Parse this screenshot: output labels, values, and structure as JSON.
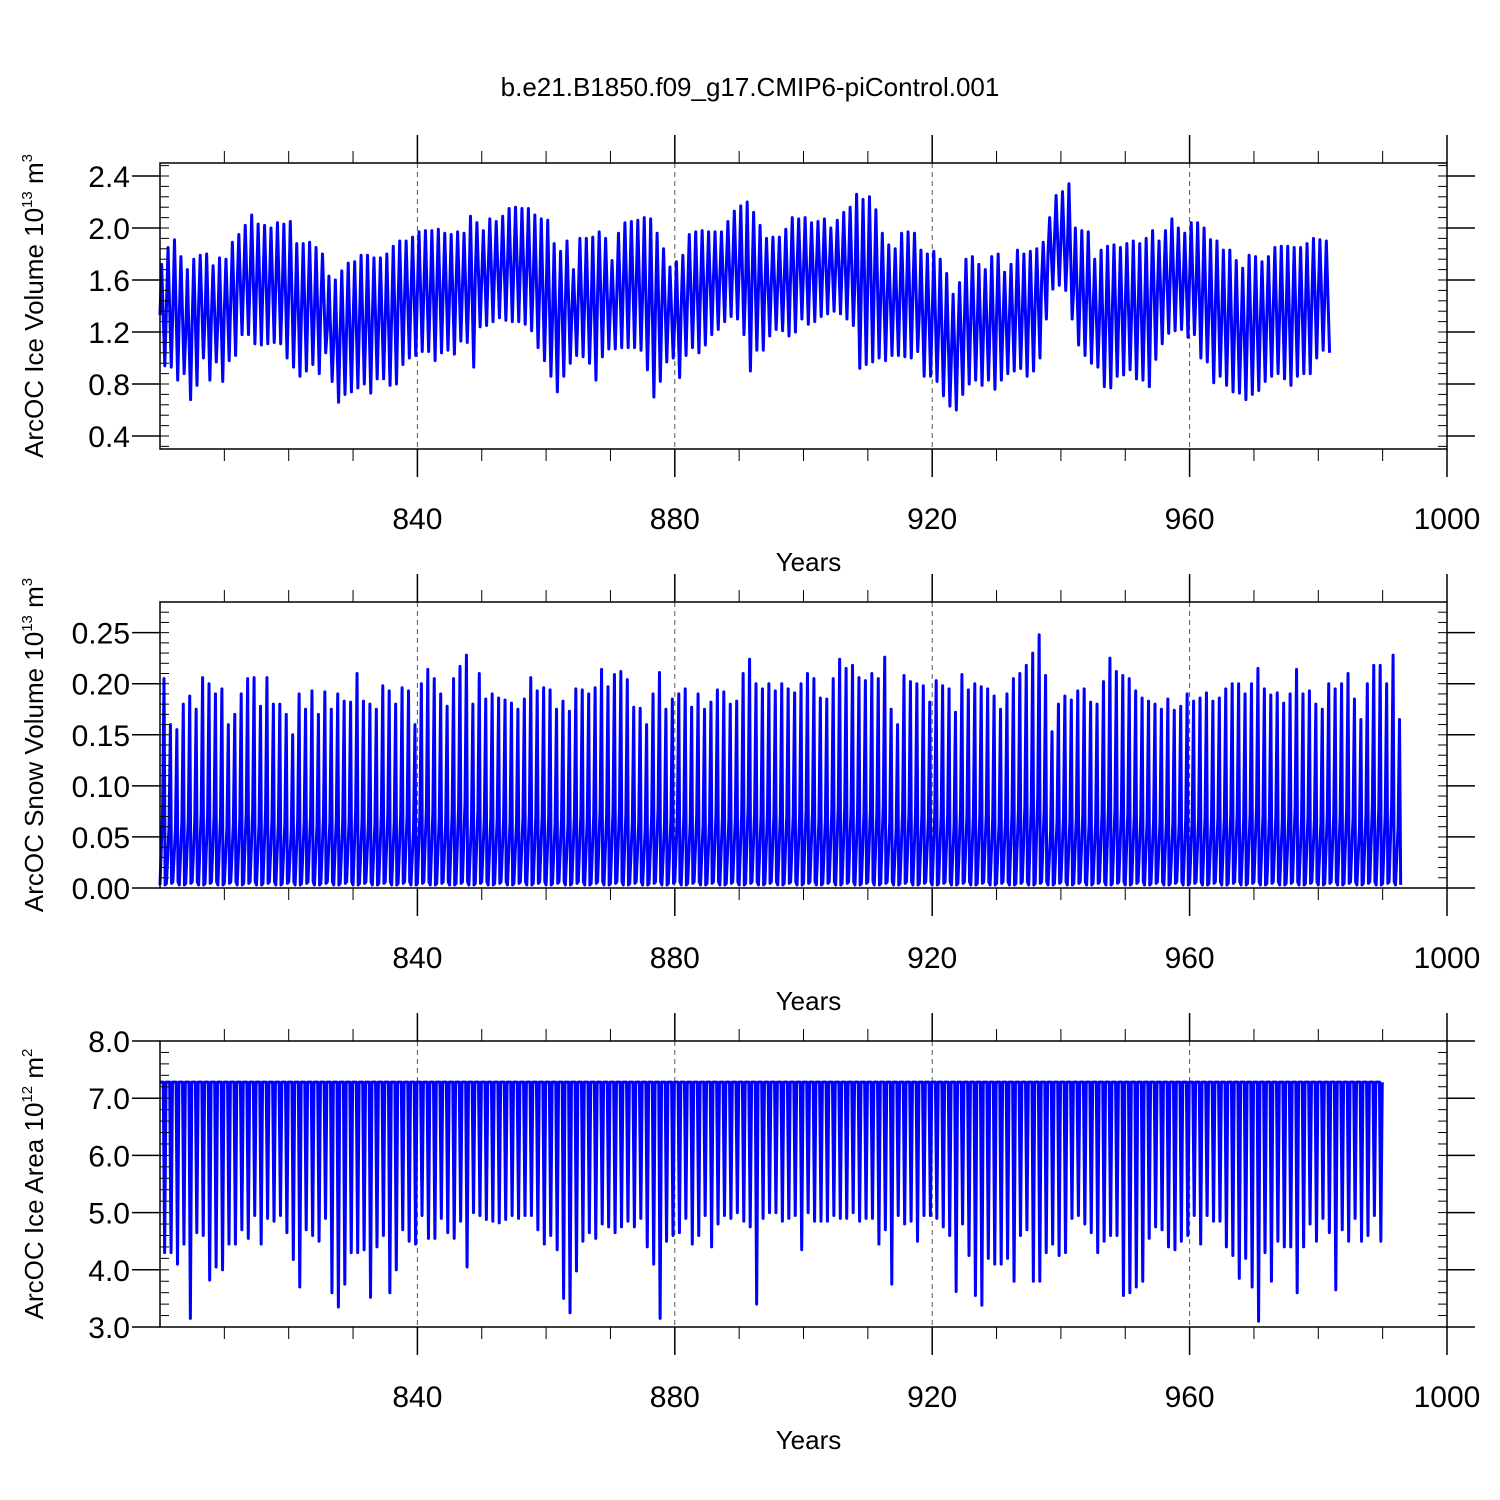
{
  "title": "b.e21.B1850.f09_g17.CMIP6-piControl.001",
  "chart_data": [
    {
      "type": "line",
      "ylabel": {
        "main": "ArcOC Ice Volume 10",
        "exp": "13",
        "unit": " m",
        "unit_exp": "3"
      },
      "xlabel": "Years",
      "xlim": [
        800,
        1000
      ],
      "ylim": [
        0.3,
        2.5
      ],
      "yticks": [
        "0.4",
        "0.8",
        "1.2",
        "1.6",
        "2.0",
        "2.4"
      ],
      "xticks": [
        "840",
        "880",
        "920",
        "960",
        "1000"
      ],
      "line_color": "#0000ff",
      "x_start": 800.0,
      "step_per_year": 1,
      "series": [
        {
          "values_per_year_max": [
            1.72,
            1.85,
            1.91,
            1.78,
            1.68,
            1.76,
            1.79,
            1.8,
            1.71,
            1.77,
            1.76,
            1.89,
            1.95,
            2.02,
            2.1,
            2.03,
            2.02,
            2.0,
            2.04,
            2.03,
            2.05,
            1.88,
            1.88,
            1.89,
            1.85,
            1.8,
            1.63,
            1.6,
            1.67,
            1.73,
            1.74,
            1.79,
            1.79,
            1.77,
            1.77,
            1.8,
            1.86,
            1.9,
            1.9,
            1.93,
            1.97,
            1.98,
            1.98,
            1.99,
            1.96,
            1.95,
            1.97,
            1.96,
            2.09,
            2.04,
            1.98,
            2.07,
            2.05,
            2.09,
            2.15,
            2.16,
            2.15,
            2.15,
            2.1,
            2.07,
            2.06,
            1.88,
            1.82,
            1.9,
            1.68,
            1.92,
            1.92,
            1.93,
            1.97,
            1.92,
            1.75,
            1.96,
            2.04,
            2.05,
            2.06,
            2.08,
            2.07,
            1.96,
            1.84,
            1.7,
            1.74,
            1.79,
            1.95,
            1.97,
            1.98,
            1.97,
            1.97,
            1.97,
            2.05,
            2.13,
            2.17,
            2.2,
            2.12,
            2.02,
            1.92,
            1.93,
            1.93,
            1.99,
            2.08,
            2.07,
            2.08,
            2.04,
            2.05,
            2.07,
            2.0,
            2.06,
            2.12,
            2.16,
            2.26,
            2.22,
            2.24,
            2.14,
            1.96,
            1.87,
            1.84,
            1.96,
            1.97,
            1.96,
            1.83,
            1.8,
            1.82,
            1.76,
            1.65,
            1.49,
            1.58,
            1.76,
            1.78,
            1.72,
            1.68,
            1.78,
            1.8,
            1.66,
            1.72,
            1.83,
            1.8,
            1.82,
            1.84,
            1.89,
            2.08,
            2.25,
            2.28,
            2.34,
            2.0,
            1.98,
            1.97,
            1.76,
            1.83,
            1.86,
            1.87,
            1.85,
            1.88,
            1.9,
            1.88,
            1.92,
            1.98,
            1.9,
            1.98,
            2.07,
            2.0,
            1.96,
            2.04,
            2.04,
            2.0,
            1.91,
            1.9,
            1.83,
            1.83,
            1.75,
            1.69,
            1.79,
            1.78,
            1.74,
            1.78,
            1.85,
            1.86,
            1.86,
            1.85,
            1.85,
            1.88,
            1.92,
            1.91,
            1.9
          ],
          "values_per_year_min": [
            0.94,
            0.93,
            0.83,
            0.88,
            0.68,
            0.79,
            1.0,
            0.83,
            0.97,
            0.82,
            0.98,
            1.02,
            1.18,
            1.18,
            1.11,
            1.1,
            1.11,
            1.12,
            1.11,
            1.0,
            0.93,
            0.86,
            0.9,
            0.95,
            0.88,
            1.04,
            0.82,
            0.66,
            0.72,
            0.74,
            0.77,
            0.8,
            0.73,
            0.84,
            0.84,
            0.79,
            0.8,
            0.95,
            1.0,
            1.02,
            1.05,
            1.05,
            0.98,
            1.04,
            1.06,
            1.03,
            1.13,
            1.12,
            0.93,
            1.24,
            1.25,
            1.28,
            1.31,
            1.29,
            1.28,
            1.28,
            1.26,
            1.21,
            1.08,
            0.98,
            0.86,
            0.74,
            0.86,
            0.96,
            1.02,
            1.01,
            0.96,
            0.83,
            1.01,
            1.07,
            1.07,
            1.08,
            1.08,
            1.08,
            1.06,
            0.91,
            0.7,
            0.82,
            0.97,
            1.0,
            0.85,
            1.02,
            1.08,
            1.04,
            1.1,
            1.18,
            1.22,
            1.28,
            1.32,
            1.3,
            1.18,
            0.9,
            1.06,
            1.06,
            1.17,
            1.22,
            1.21,
            1.17,
            1.2,
            1.3,
            1.26,
            1.28,
            1.32,
            1.34,
            1.36,
            1.34,
            1.3,
            1.25,
            0.92,
            0.95,
            0.97,
            1.0,
            0.98,
            1.02,
            1.02,
            1.01,
            1.0,
            1.05,
            0.86,
            0.86,
            0.82,
            0.71,
            0.63,
            0.6,
            0.72,
            0.8,
            0.83,
            0.79,
            0.83,
            0.76,
            0.83,
            0.88,
            0.9,
            0.92,
            0.86,
            0.9,
            1.0,
            1.3,
            1.53,
            1.56,
            1.52,
            1.3,
            1.1,
            1.02,
            0.96,
            0.93,
            0.78,
            0.77,
            0.86,
            0.87,
            0.91,
            0.84,
            0.83,
            0.78,
            0.99,
            1.11,
            1.19,
            1.21,
            1.22,
            1.16,
            1.18,
            1.0,
            0.97,
            0.81,
            0.86,
            0.79,
            0.74,
            0.73,
            0.68,
            0.72,
            0.75,
            0.82,
            0.86,
            0.88,
            0.84,
            0.79,
            0.86,
            0.88,
            0.88,
            1.0,
            1.06,
            1.04
          ]
        }
      ]
    },
    {
      "type": "line",
      "ylabel": {
        "main": "ArcOC Snow Volume 10",
        "exp": "13",
        "unit": " m",
        "unit_exp": "3"
      },
      "xlabel": "Years",
      "xlim": [
        800,
        1000
      ],
      "ylim": [
        0.0,
        0.28
      ],
      "yticks": [
        "0.00",
        "0.05",
        "0.10",
        "0.15",
        "0.20",
        "0.25"
      ],
      "xticks": [
        "840",
        "880",
        "920",
        "960",
        "1000"
      ],
      "line_color": "#0000ff",
      "x_start": 800.0,
      "step_per_year": 1,
      "series": [
        {
          "values_per_year_max": [
            0.205,
            0.16,
            0.155,
            0.18,
            0.188,
            0.175,
            0.206,
            0.2,
            0.19,
            0.195,
            0.16,
            0.17,
            0.19,
            0.205,
            0.206,
            0.178,
            0.206,
            0.18,
            0.18,
            0.17,
            0.15,
            0.19,
            0.175,
            0.193,
            0.17,
            0.192,
            0.175,
            0.19,
            0.183,
            0.182,
            0.21,
            0.183,
            0.18,
            0.175,
            0.198,
            0.193,
            0.18,
            0.196,
            0.193,
            0.16,
            0.2,
            0.214,
            0.205,
            0.19,
            0.178,
            0.205,
            0.217,
            0.228,
            0.18,
            0.21,
            0.185,
            0.19,
            0.186,
            0.184,
            0.181,
            0.175,
            0.185,
            0.206,
            0.193,
            0.196,
            0.194,
            0.175,
            0.183,
            0.173,
            0.195,
            0.194,
            0.19,
            0.196,
            0.214,
            0.197,
            0.209,
            0.212,
            0.204,
            0.177,
            0.176,
            0.16,
            0.19,
            0.211,
            0.175,
            0.185,
            0.19,
            0.195,
            0.177,
            0.19,
            0.175,
            0.182,
            0.194,
            0.192,
            0.18,
            0.183,
            0.21,
            0.224,
            0.2,
            0.195,
            0.2,
            0.193,
            0.2,
            0.195,
            0.191,
            0.2,
            0.21,
            0.205,
            0.186,
            0.185,
            0.205,
            0.224,
            0.215,
            0.218,
            0.206,
            0.203,
            0.21,
            0.205,
            0.226,
            0.175,
            0.16,
            0.208,
            0.202,
            0.2,
            0.198,
            0.182,
            0.203,
            0.198,
            0.195,
            0.172,
            0.209,
            0.194,
            0.2,
            0.197,
            0.195,
            0.188,
            0.175,
            0.19,
            0.205,
            0.21,
            0.218,
            0.23,
            0.248,
            0.208,
            0.153,
            0.18,
            0.188,
            0.184,
            0.193,
            0.195,
            0.182,
            0.18,
            0.202,
            0.225,
            0.212,
            0.208,
            0.205,
            0.193,
            0.186,
            0.183,
            0.18,
            0.175,
            0.185,
            0.174,
            0.178,
            0.19,
            0.183,
            0.186,
            0.191,
            0.183,
            0.186,
            0.195,
            0.2,
            0.2,
            0.19,
            0.2,
            0.215,
            0.195,
            0.189,
            0.191,
            0.181,
            0.19,
            0.214,
            0.19,
            0.193,
            0.18,
            0.175,
            0.2,
            0.195,
            0.2,
            0.21,
            0.185,
            0.165,
            0.2,
            0.218,
            0.218,
            0.2,
            0.228,
            0.165
          ]
        }
      ]
    },
    {
      "type": "line",
      "ylabel": {
        "main": "ArcOC Ice Area 10",
        "exp": "12",
        "unit": " m",
        "unit_exp": "2"
      },
      "xlabel": "Years",
      "xlim": [
        800,
        1000
      ],
      "ylim": [
        3.0,
        8.0
      ],
      "yticks": [
        "3.0",
        "4.0",
        "5.0",
        "6.0",
        "7.0",
        "8.0"
      ],
      "xticks": [
        "840",
        "880",
        "920",
        "960",
        "1000"
      ],
      "line_color": "#0000ff",
      "x_start": 800.0,
      "step_per_year": 1,
      "values_max_constant": 7.28,
      "series": [
        {
          "values_per_year_min": [
            4.3,
            4.3,
            4.1,
            4.45,
            3.15,
            4.65,
            4.6,
            3.82,
            4.05,
            4.0,
            4.45,
            4.45,
            4.7,
            4.55,
            4.95,
            4.45,
            4.9,
            4.85,
            4.95,
            4.65,
            4.18,
            3.7,
            4.7,
            4.6,
            4.5,
            4.9,
            3.6,
            3.35,
            3.75,
            4.3,
            4.3,
            4.35,
            3.52,
            4.4,
            4.6,
            3.6,
            4.0,
            4.7,
            4.5,
            4.45,
            4.95,
            4.55,
            4.55,
            4.9,
            4.65,
            4.55,
            4.85,
            4.05,
            5.0,
            4.95,
            4.88,
            4.85,
            4.82,
            4.88,
            4.95,
            4.9,
            4.95,
            4.95,
            4.7,
            4.45,
            4.6,
            4.35,
            3.5,
            3.25,
            3.98,
            4.5,
            4.65,
            4.55,
            4.8,
            4.75,
            4.65,
            4.75,
            4.85,
            4.75,
            4.9,
            4.4,
            4.1,
            3.15,
            4.5,
            4.6,
            4.65,
            4.9,
            4.45,
            4.6,
            4.95,
            4.4,
            4.8,
            4.95,
            4.9,
            5.0,
            4.85,
            4.75,
            3.4,
            4.9,
            5.0,
            5.0,
            4.85,
            4.9,
            4.95,
            4.35,
            5.0,
            4.85,
            4.85,
            4.85,
            4.95,
            4.9,
            4.9,
            5.0,
            4.85,
            4.9,
            4.9,
            4.45,
            4.7,
            3.75,
            4.95,
            4.8,
            4.85,
            4.5,
            4.95,
            4.95,
            4.9,
            4.75,
            4.6,
            3.62,
            4.8,
            4.25,
            3.55,
            3.38,
            4.2,
            4.1,
            4.1,
            4.2,
            3.8,
            4.6,
            4.7,
            3.8,
            3.8,
            4.3,
            4.45,
            4.25,
            4.3,
            4.9,
            4.95,
            4.8,
            4.65,
            4.3,
            4.5,
            4.6,
            4.6,
            3.55,
            3.6,
            3.7,
            3.8,
            4.55,
            4.75,
            4.7,
            4.4,
            4.35,
            4.5,
            4.6,
            4.95,
            4.45,
            4.95,
            4.85,
            4.85,
            4.4,
            4.25,
            3.85,
            4.2,
            3.7,
            3.1,
            4.3,
            3.8,
            4.5,
            4.4,
            4.4,
            3.6,
            4.4,
            4.8,
            4.5,
            4.9,
            4.65,
            3.65,
            4.7,
            4.5,
            4.9,
            4.5,
            4.6,
            4.95,
            4.5
          ]
        }
      ]
    }
  ]
}
